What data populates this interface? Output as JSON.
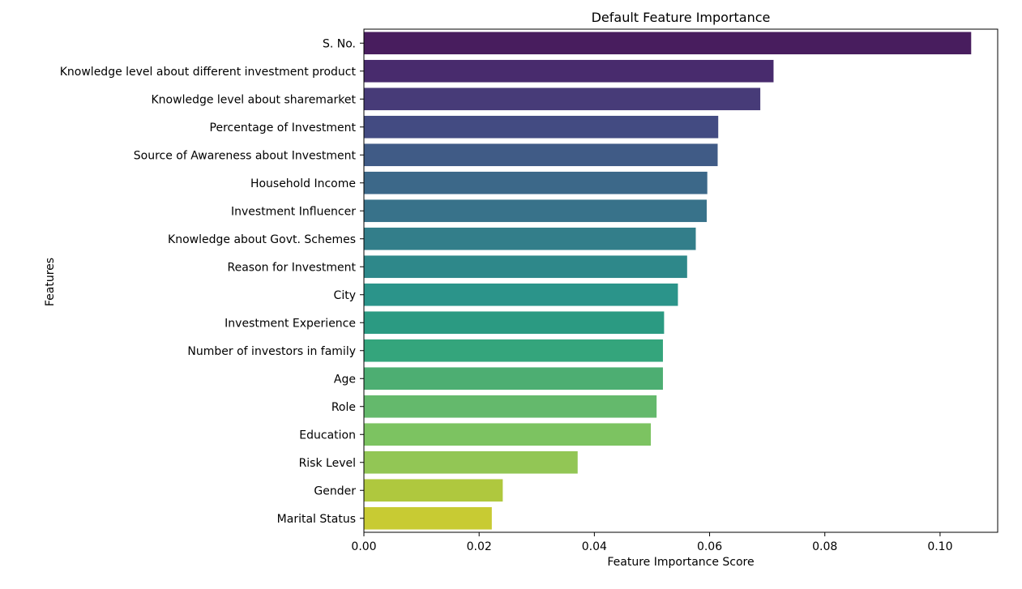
{
  "chart_data": {
    "type": "bar",
    "orientation": "horizontal",
    "title": "Default Feature Importance",
    "xlabel": "Feature Importance Score",
    "ylabel": "Features",
    "xlim": [
      0,
      0.11
    ],
    "x_ticks": [
      "0.00",
      "0.02",
      "0.04",
      "0.06",
      "0.08",
      "0.10"
    ],
    "grid": false,
    "legend": "none",
    "palette": "viridis",
    "categories": [
      "S. No.",
      "Knowledge level about different investment product",
      "Knowledge level about sharemarket",
      "Percentage of Investment",
      "Source of Awareness about Investment",
      "Household Income",
      "Investment Influencer",
      "Knowledge about Govt. Schemes",
      "Reason for Investment",
      "City",
      "Investment Experience",
      "Number of investors in family",
      "Age",
      "Role",
      "Education",
      "Risk Level",
      "Gender",
      "Marital Status"
    ],
    "values": [
      0.1054,
      0.0711,
      0.0688,
      0.0615,
      0.0614,
      0.0596,
      0.0595,
      0.0576,
      0.0561,
      0.0545,
      0.0521,
      0.0519,
      0.0519,
      0.0508,
      0.0498,
      0.0371,
      0.0241,
      0.0222
    ],
    "bar_colors": [
      "#481D5E",
      "#482B6D",
      "#473B78",
      "#434B82",
      "#405B86",
      "#3C6889",
      "#38728A",
      "#337E8A",
      "#2E888A",
      "#2B948A",
      "#2B9A82",
      "#34A57C",
      "#4DAE72",
      "#64B96C",
      "#7CC361",
      "#92C655",
      "#AFC83E",
      "#C8CB33"
    ]
  }
}
